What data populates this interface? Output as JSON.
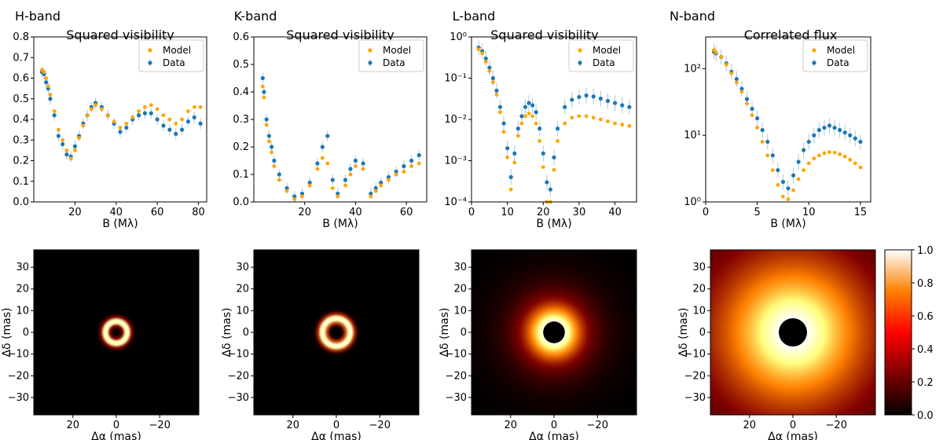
{
  "colors": {
    "model": "#ffa500",
    "data": "#1f77b4",
    "errorbar": "#a6c8e2",
    "axes": "#000000"
  },
  "chart_data": [
    {
      "type": "scatter",
      "id": "h",
      "band_title": "H-band",
      "title": "Squared visibility",
      "xlabel": "B (Mλ)",
      "ylabel": "",
      "xscale": "linear",
      "yscale": "linear",
      "xlim": [
        0,
        84
      ],
      "ylim": [
        0,
        0.8
      ],
      "xticks": [
        20,
        40,
        60,
        80
      ],
      "xtick_labels": [
        "20",
        "40",
        "60",
        "80"
      ],
      "yticks": [
        0,
        0.1,
        0.2,
        0.3,
        0.4,
        0.5,
        0.6,
        0.7,
        0.8
      ],
      "ytick_labels": [
        "0.0",
        "0.1",
        "0.2",
        "0.3",
        "0.4",
        "0.5",
        "0.6",
        "0.7",
        "0.8"
      ],
      "legend": [
        "Model",
        "Data"
      ],
      "legend_position": "top-right",
      "series": [
        {
          "name": "Data",
          "x": [
            4,
            5,
            6,
            7,
            8,
            10,
            12,
            14,
            16,
            18,
            20,
            22,
            24,
            26,
            28,
            30,
            33,
            36,
            39,
            42,
            45,
            48,
            51,
            54,
            57,
            60,
            63,
            66,
            69,
            72,
            75,
            78,
            81
          ],
          "y": [
            0.63,
            0.62,
            0.58,
            0.55,
            0.5,
            0.42,
            0.32,
            0.28,
            0.23,
            0.22,
            0.27,
            0.32,
            0.38,
            0.42,
            0.46,
            0.48,
            0.46,
            0.42,
            0.38,
            0.34,
            0.36,
            0.4,
            0.42,
            0.43,
            0.43,
            0.4,
            0.37,
            0.35,
            0.33,
            0.35,
            0.39,
            0.41,
            0.38
          ]
        },
        {
          "name": "Model",
          "x": [
            4,
            5,
            6,
            7,
            8,
            10,
            12,
            14,
            16,
            18,
            20,
            22,
            24,
            26,
            28,
            30,
            33,
            36,
            39,
            42,
            45,
            48,
            51,
            54,
            57,
            60,
            63,
            66,
            69,
            72,
            75,
            78,
            81
          ],
          "y": [
            0.64,
            0.63,
            0.6,
            0.56,
            0.52,
            0.44,
            0.35,
            0.3,
            0.25,
            0.21,
            0.25,
            0.31,
            0.37,
            0.42,
            0.45,
            0.47,
            0.45,
            0.42,
            0.39,
            0.36,
            0.38,
            0.41,
            0.44,
            0.46,
            0.47,
            0.45,
            0.42,
            0.4,
            0.38,
            0.4,
            0.44,
            0.46,
            0.46
          ]
        }
      ]
    },
    {
      "type": "scatter",
      "id": "k",
      "band_title": "K-band",
      "title": "Squared visibility",
      "xlabel": "B (Mλ)",
      "ylabel": "",
      "xscale": "linear",
      "yscale": "linear",
      "xlim": [
        0,
        68
      ],
      "ylim": [
        0,
        0.6
      ],
      "xticks": [
        20,
        40,
        60
      ],
      "xtick_labels": [
        "20",
        "40",
        "60"
      ],
      "yticks": [
        0,
        0.1,
        0.2,
        0.3,
        0.4,
        0.5,
        0.6
      ],
      "ytick_labels": [
        "0.0",
        "0.1",
        "0.2",
        "0.3",
        "0.4",
        "0.5",
        "0.6"
      ],
      "legend": [
        "Model",
        "Data"
      ],
      "legend_position": "top-right",
      "series": [
        {
          "name": "Data",
          "x": [
            3.5,
            4,
            5,
            6,
            7,
            8,
            10,
            13,
            16,
            19,
            22,
            25,
            27,
            29,
            31,
            33,
            36,
            38,
            40,
            43,
            46,
            48,
            50,
            53,
            56,
            59,
            62,
            65
          ],
          "y": [
            0.45,
            0.4,
            0.3,
            0.24,
            0.2,
            0.15,
            0.1,
            0.05,
            0.02,
            0.03,
            0.07,
            0.14,
            0.2,
            0.24,
            0.08,
            0.03,
            0.08,
            0.12,
            0.15,
            0.14,
            0.03,
            0.05,
            0.07,
            0.09,
            0.11,
            0.13,
            0.15,
            0.17
          ]
        },
        {
          "name": "Model",
          "x": [
            3.5,
            4,
            5,
            6,
            7,
            8,
            10,
            13,
            16,
            19,
            22,
            25,
            27,
            29,
            31,
            33,
            36,
            38,
            40,
            43,
            46,
            48,
            50,
            53,
            56,
            59,
            62,
            65
          ],
          "y": [
            0.42,
            0.38,
            0.28,
            0.22,
            0.18,
            0.13,
            0.08,
            0.04,
            0.01,
            0.02,
            0.06,
            0.12,
            0.16,
            0.14,
            0.05,
            0.02,
            0.06,
            0.1,
            0.13,
            0.12,
            0.02,
            0.04,
            0.06,
            0.08,
            0.1,
            0.11,
            0.13,
            0.14
          ]
        }
      ]
    },
    {
      "type": "scatter",
      "id": "l",
      "band_title": "L-band",
      "title": "Squared visibility",
      "xlabel": "B (Mλ)",
      "ylabel": "",
      "xscale": "linear",
      "yscale": "log",
      "xlim": [
        0,
        46
      ],
      "ylim": [
        0.0001,
        1
      ],
      "xticks": [
        0,
        10,
        20,
        30,
        40
      ],
      "xtick_labels": [
        "0",
        "10",
        "20",
        "30",
        "40"
      ],
      "yticks": [
        0.0001,
        0.001,
        0.01,
        0.1,
        1
      ],
      "ytick_labels": [
        "10⁻⁴",
        "10⁻³",
        "10⁻²",
        "10⁻¹",
        "10⁰"
      ],
      "legend": [
        "Model",
        "Data"
      ],
      "legend_position": "top-right",
      "series": [
        {
          "name": "Data",
          "x": [
            2,
            3,
            4,
            5,
            6,
            7,
            8,
            9,
            10,
            11,
            12,
            13,
            14,
            15,
            16,
            17,
            18,
            19,
            20,
            21,
            22,
            23,
            24,
            26,
            28,
            30,
            32,
            34,
            36,
            38,
            40,
            42,
            44
          ],
          "y": [
            0.55,
            0.45,
            0.3,
            0.18,
            0.1,
            0.05,
            0.02,
            0.008,
            0.002,
            0.0004,
            0.0015,
            0.006,
            0.012,
            0.02,
            0.025,
            0.022,
            0.015,
            0.006,
            0.0015,
            0.0003,
            0.0002,
            0.0012,
            0.006,
            0.02,
            0.03,
            0.035,
            0.038,
            0.036,
            0.032,
            0.028,
            0.025,
            0.022,
            0.02
          ]
        },
        {
          "name": "Model",
          "x": [
            2,
            3,
            4,
            5,
            6,
            7,
            8,
            9,
            10,
            11,
            12,
            13,
            14,
            15,
            16,
            17,
            18,
            19,
            20,
            21,
            22,
            23,
            24,
            26,
            28,
            30,
            32,
            34,
            36,
            38,
            40,
            42,
            44
          ],
          "y": [
            0.5,
            0.4,
            0.25,
            0.15,
            0.08,
            0.04,
            0.015,
            0.005,
            0.0012,
            0.0002,
            0.0009,
            0.004,
            0.008,
            0.012,
            0.014,
            0.012,
            0.008,
            0.003,
            0.0007,
            0.0001,
            0.0001,
            0.0006,
            0.003,
            0.008,
            0.011,
            0.012,
            0.012,
            0.011,
            0.01,
            0.009,
            0.008,
            0.0075,
            0.007
          ]
        }
      ]
    },
    {
      "type": "scatter",
      "id": "n",
      "band_title": "N-band",
      "title": "Correlated flux",
      "xlabel": "B (Mλ)",
      "ylabel": "",
      "xscale": "linear",
      "yscale": "log",
      "xlim": [
        0,
        16
      ],
      "ylim": [
        1,
        300
      ],
      "xticks": [
        0,
        5,
        10,
        15
      ],
      "xtick_labels": [
        "0",
        "5",
        "10",
        "15"
      ],
      "yticks": [
        1,
        10,
        100
      ],
      "ytick_labels": [
        "10⁰",
        "10¹",
        "10²"
      ],
      "legend": [
        "Model",
        "Data"
      ],
      "legend_position": "top-right",
      "series": [
        {
          "name": "Data",
          "x": [
            0.8,
            1,
            1.5,
            2,
            2.5,
            3,
            3.5,
            4,
            4.5,
            5,
            5.5,
            6,
            6.5,
            7,
            7.5,
            8,
            8.5,
            9,
            9.5,
            10,
            10.5,
            11,
            11.5,
            12,
            12.5,
            13,
            13.5,
            14,
            14.5,
            15
          ],
          "y": [
            180,
            170,
            150,
            120,
            90,
            70,
            50,
            35,
            25,
            18,
            12,
            8,
            5,
            3,
            2,
            1.6,
            2.5,
            4,
            6,
            8,
            10,
            12,
            13,
            14,
            13,
            12,
            11,
            10,
            9,
            8
          ]
        },
        {
          "name": "Model",
          "x": [
            0.8,
            1,
            1.5,
            2,
            2.5,
            3,
            3.5,
            4,
            4.5,
            5,
            5.5,
            6,
            6.5,
            7,
            7.5,
            8,
            8.5,
            9,
            9.5,
            10,
            10.5,
            11,
            11.5,
            12,
            12.5,
            13,
            13.5,
            14,
            14.5,
            15
          ],
          "y": [
            190,
            175,
            150,
            115,
            85,
            62,
            45,
            30,
            20,
            13,
            8,
            5,
            3,
            1.8,
            1.2,
            1.1,
            1.5,
            2.2,
            3,
            3.8,
            4.5,
            5,
            5.4,
            5.6,
            5.5,
            5.2,
            4.8,
            4.3,
            3.8,
            3.3
          ]
        }
      ]
    },
    {
      "type": "heatmap",
      "id": "img_h",
      "profile": "ring",
      "ring_radius_mas": 5,
      "ring_width_mas": 2,
      "inner_hole_mas": 0,
      "xlabel": "Δα (mas)",
      "ylabel": "Δδ (mas)",
      "xlim": [
        38,
        -38
      ],
      "ylim": [
        -38,
        38
      ],
      "xticks": [
        20,
        0,
        -20
      ],
      "xtick_labels": [
        "20",
        "0",
        "−20"
      ],
      "yticks": [
        30,
        20,
        10,
        0,
        -10,
        -20,
        -30
      ],
      "ytick_labels": [
        "30",
        "20",
        "10",
        "0",
        "−10",
        "−20",
        "−30"
      ]
    },
    {
      "type": "heatmap",
      "id": "img_k",
      "profile": "ring",
      "ring_radius_mas": 6.3,
      "ring_width_mas": 2.3,
      "inner_hole_mas": 0,
      "xlabel": "Δα (mas)",
      "ylabel": "Δδ (mas)",
      "xlim": [
        38,
        -38
      ],
      "ylim": [
        -38,
        38
      ],
      "xticks": [
        20,
        0,
        -20
      ],
      "xtick_labels": [
        "20",
        "0",
        "−20"
      ],
      "yticks": [
        30,
        20,
        10,
        0,
        -10,
        -20,
        -30
      ],
      "ytick_labels": [
        "30",
        "20",
        "10",
        "0",
        "−10",
        "−20",
        "−30"
      ]
    },
    {
      "type": "heatmap",
      "id": "img_l",
      "profile": "disk",
      "inner_hole_mas": 5,
      "scale_mas": 8,
      "xlabel": "Δα (mas)",
      "ylabel": "Δδ (mas)",
      "xlim": [
        38,
        -38
      ],
      "ylim": [
        -38,
        38
      ],
      "xticks": [
        20,
        0,
        -20
      ],
      "xtick_labels": [
        "20",
        "0",
        "−20"
      ],
      "yticks": [
        30,
        20,
        10,
        0,
        -10,
        -20,
        -30
      ],
      "ytick_labels": [
        "30",
        "20",
        "10",
        "0",
        "−10",
        "−20",
        "−30"
      ]
    },
    {
      "type": "heatmap",
      "id": "img_n",
      "profile": "disk",
      "inner_hole_mas": 6.5,
      "scale_mas": 28,
      "xlabel": "Δα (mas)",
      "ylabel": "Δδ (mas)",
      "xlim": [
        38,
        -38
      ],
      "ylim": [
        -38,
        38
      ],
      "xticks": [
        20,
        0,
        -20
      ],
      "xtick_labels": [
        "20",
        "0",
        "−20"
      ],
      "yticks": [
        30,
        20,
        10,
        0,
        -10,
        -20,
        -30
      ],
      "ytick_labels": [
        "30",
        "20",
        "10",
        "0",
        "−10",
        "−20",
        "−30"
      ]
    }
  ],
  "colorbar": {
    "colormap": "afmhot",
    "range": [
      0,
      1
    ],
    "ticks": [
      0,
      0.2,
      0.4,
      0.6,
      0.8,
      1.0
    ],
    "tick_labels": [
      "0.0",
      "0.2",
      "0.4",
      "0.6",
      "0.8",
      "1.0"
    ]
  }
}
